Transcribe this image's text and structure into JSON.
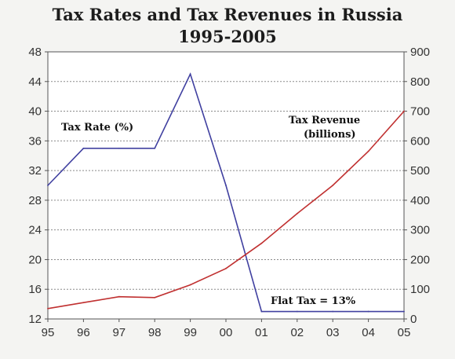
{
  "chart_data": {
    "type": "line",
    "title": "Tax Rates and Tax Revenues in Russia",
    "subtitle": "1995-2005",
    "x": [
      "95",
      "96",
      "97",
      "98",
      "99",
      "00",
      "01",
      "02",
      "03",
      "04",
      "05"
    ],
    "left_axis": {
      "ylim": [
        12,
        48
      ],
      "ticks": [
        12,
        16,
        20,
        24,
        28,
        32,
        36,
        40,
        44,
        48
      ]
    },
    "right_axis": {
      "ylim": [
        0,
        900
      ],
      "ticks": [
        0,
        100,
        200,
        300,
        400,
        500,
        600,
        700,
        800,
        900
      ]
    },
    "grid": true,
    "series": [
      {
        "name": "Tax Rate (%)",
        "axis": "left",
        "color": "#4040a0",
        "values": [
          30,
          35,
          35,
          35,
          45,
          30,
          13,
          13,
          13,
          13,
          13
        ]
      },
      {
        "name": "Tax Revenue (billions)",
        "axis": "right",
        "color": "#c03030",
        "values": [
          35,
          55,
          75,
          72,
          115,
          170,
          255,
          355,
          450,
          565,
          700
        ]
      }
    ],
    "annotations": {
      "tax_rate": "Tax Rate (%)",
      "tax_revenue_line1": "Tax Revenue",
      "tax_revenue_line2": "(billions)",
      "flat_tax": "Flat Tax = 13%"
    }
  }
}
